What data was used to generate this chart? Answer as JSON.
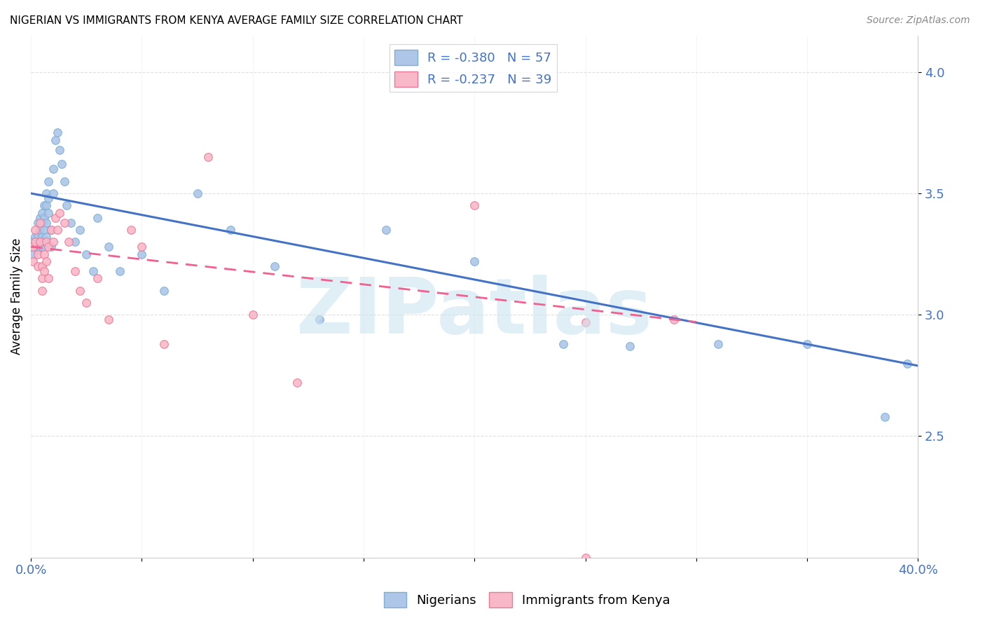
{
  "title": "NIGERIAN VS IMMIGRANTS FROM KENYA AVERAGE FAMILY SIZE CORRELATION CHART",
  "source": "Source: ZipAtlas.com",
  "ylabel": "Average Family Size",
  "ylim": [
    2.0,
    4.15
  ],
  "xlim": [
    0.0,
    0.4
  ],
  "yticks": [
    2.5,
    3.0,
    3.5,
    4.0
  ],
  "xticks": [
    0.0,
    0.05,
    0.1,
    0.15,
    0.2,
    0.25,
    0.3,
    0.35,
    0.4
  ],
  "legend_label1": "R = -0.380   N = 57",
  "legend_label2": "R = -0.237   N = 39",
  "legend_color1": "#aec6e8",
  "legend_color2": "#f9b8c8",
  "scatter_color1": "#aec6e8",
  "scatter_color2": "#f9b8c8",
  "scatter_edge1": "#7bafd4",
  "scatter_edge2": "#e87a9a",
  "line_color1": "#4472c4",
  "line_color2": "#f06090",
  "watermark": "ZIPatlas",
  "watermark_color": "#cce5f0",
  "bottom_legend1": "Nigerians",
  "bottom_legend2": "Immigrants from Kenya",
  "nig_line_x0": 0.0,
  "nig_line_x1": 0.4,
  "nig_line_y0": 3.5,
  "nig_line_y1": 2.79,
  "ken_line_x0": 0.0,
  "ken_line_x1": 0.3,
  "ken_line_y0": 3.28,
  "ken_line_y1": 2.97,
  "nigerian_x": [
    0.001,
    0.001,
    0.002,
    0.002,
    0.003,
    0.003,
    0.003,
    0.004,
    0.004,
    0.004,
    0.005,
    0.005,
    0.005,
    0.005,
    0.006,
    0.006,
    0.006,
    0.006,
    0.007,
    0.007,
    0.007,
    0.007,
    0.008,
    0.008,
    0.008,
    0.009,
    0.009,
    0.01,
    0.01,
    0.011,
    0.012,
    0.013,
    0.014,
    0.015,
    0.016,
    0.018,
    0.02,
    0.022,
    0.025,
    0.028,
    0.03,
    0.035,
    0.04,
    0.05,
    0.06,
    0.075,
    0.09,
    0.11,
    0.13,
    0.16,
    0.2,
    0.24,
    0.27,
    0.31,
    0.35,
    0.385,
    0.395
  ],
  "nigerian_y": [
    3.3,
    3.25,
    3.32,
    3.28,
    3.38,
    3.33,
    3.27,
    3.4,
    3.35,
    3.28,
    3.42,
    3.38,
    3.32,
    3.28,
    3.45,
    3.4,
    3.35,
    3.3,
    3.5,
    3.45,
    3.38,
    3.32,
    3.55,
    3.48,
    3.42,
    3.35,
    3.28,
    3.6,
    3.5,
    3.72,
    3.75,
    3.68,
    3.62,
    3.55,
    3.45,
    3.38,
    3.3,
    3.35,
    3.25,
    3.18,
    3.4,
    3.28,
    3.18,
    3.25,
    3.1,
    3.5,
    3.35,
    3.2,
    2.98,
    3.35,
    3.22,
    2.88,
    2.87,
    2.88,
    2.88,
    2.58,
    2.8
  ],
  "kenya_x": [
    0.001,
    0.001,
    0.002,
    0.002,
    0.003,
    0.003,
    0.004,
    0.004,
    0.005,
    0.005,
    0.005,
    0.006,
    0.006,
    0.007,
    0.007,
    0.008,
    0.008,
    0.009,
    0.01,
    0.011,
    0.012,
    0.013,
    0.015,
    0.017,
    0.02,
    0.022,
    0.025,
    0.03,
    0.035,
    0.045,
    0.05,
    0.06,
    0.08,
    0.1,
    0.12,
    0.2,
    0.25,
    0.29,
    0.25
  ],
  "kenya_y": [
    3.28,
    3.22,
    3.35,
    3.3,
    3.25,
    3.2,
    3.38,
    3.3,
    3.2,
    3.15,
    3.1,
    3.25,
    3.18,
    3.3,
    3.22,
    3.28,
    3.15,
    3.35,
    3.3,
    3.4,
    3.35,
    3.42,
    3.38,
    3.3,
    3.18,
    3.1,
    3.05,
    3.15,
    2.98,
    3.35,
    3.28,
    2.88,
    3.65,
    3.0,
    2.72,
    3.45,
    2.97,
    2.98,
    2.0
  ]
}
